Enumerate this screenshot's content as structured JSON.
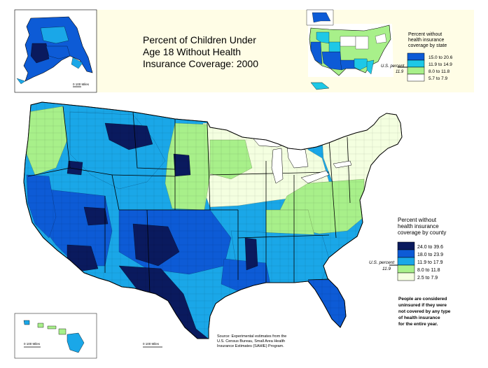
{
  "title": {
    "line1": "Percent of Children Under",
    "line2": "Age 18 Without Health",
    "line3": "Insurance Coverage: 2000"
  },
  "colors": {
    "panel": "#fffde6",
    "water": "#ffffff",
    "border": "#000000",
    "class1": "#0a1a5e",
    "class2": "#0d5bd6",
    "class3": "#1aa7e8",
    "class4": "#a8f08a",
    "class5": "#f4ffe0"
  },
  "state_legend": {
    "title_line1": "Percent without",
    "title_line2": "health insurance",
    "title_line3": "coverage by state",
    "us_label": "U.S. percent",
    "us_value": "11.9",
    "items": [
      {
        "label": "15.0 to 20.6",
        "color": "#0d5bd6"
      },
      {
        "label": "11.9 to 14.9",
        "color": "#1ec8e6"
      },
      {
        "label": "8.0 to 11.8",
        "color": "#a8f08a"
      },
      {
        "label": "5.7 to 7.9",
        "color": "#ffffff"
      }
    ]
  },
  "county_legend": {
    "title_line1": "Percent without",
    "title_line2": "health insurance",
    "title_line3": "coverage by county",
    "us_label": "U.S. percent",
    "us_value": "11.9",
    "items": [
      {
        "label": "24.0 to 39.6",
        "color": "#0a1a5e"
      },
      {
        "label": "18.0 to 23.9",
        "color": "#0d5bd6"
      },
      {
        "label": "11.9 to 17.9",
        "color": "#1aa7e8"
      },
      {
        "label": "8.0 to 11.8",
        "color": "#a8f08a"
      },
      {
        "label": "2.5 to 7.9",
        "color": "#f4ffe0"
      }
    ]
  },
  "note": {
    "line1": "People are considered",
    "line2": "uninsured if they were",
    "line3": "not covered by any type",
    "line4": "of health insurance",
    "line5": "for the entire year."
  },
  "source": {
    "line1": "Source: Experimental estimates from the",
    "line2": "U.S. Census Bureau, Small Area Health",
    "line3": "Insurance Estimates (SAHIE) Program."
  },
  "scales": {
    "alaska": "0     100 Miles",
    "hawaii": "0        100 Miles",
    "conus": "0       100 Miles"
  }
}
